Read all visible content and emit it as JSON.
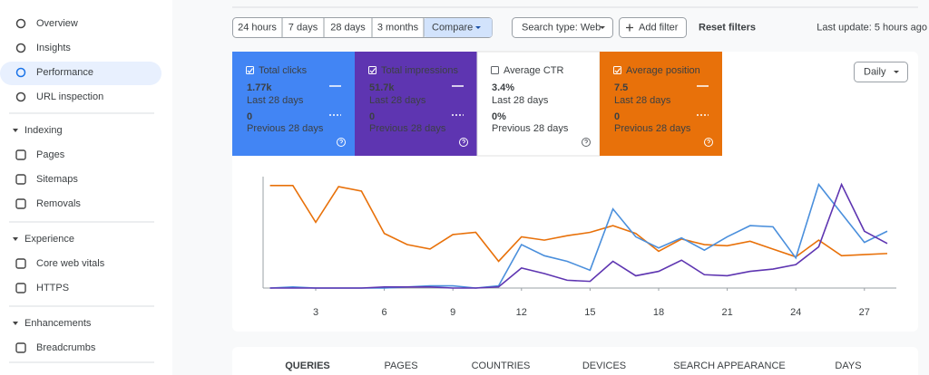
{
  "sidebar": {
    "items": [
      "Overview",
      "Insights",
      "Performance",
      "URL inspection"
    ],
    "sections": [
      {
        "title": "Indexing",
        "items": [
          "Pages",
          "Sitemaps",
          "Removals"
        ]
      },
      {
        "title": "Experience",
        "items": [
          "Core web vitals",
          "HTTPS"
        ]
      },
      {
        "title": "Enhancements",
        "items": [
          "Breadcrumbs"
        ]
      }
    ]
  },
  "toolbar": {
    "date_ranges": [
      "24 hours",
      "7 days",
      "28 days",
      "3 months"
    ],
    "compare": "Compare",
    "search_type": "Search type: Web",
    "add_filter": "Add filter",
    "reset": "Reset filters",
    "last_update": "Last update: 5 hours ago"
  },
  "metrics": [
    {
      "name": "Total clicks",
      "value": "1.77k",
      "period": "Last 28 days",
      "prev_value": "0",
      "prev_period": "Previous 28 days"
    },
    {
      "name": "Total impressions",
      "value": "51.7k",
      "period": "Last 28 days",
      "prev_value": "0",
      "prev_period": "Previous 28 days"
    },
    {
      "name": "Average CTR",
      "value": "3.4%",
      "period": "Last 28 days",
      "prev_value": "0%",
      "prev_period": "Previous 28 days"
    },
    {
      "name": "Average position",
      "value": "7.5",
      "period": "Last 28 days",
      "prev_value": "0",
      "prev_period": "Previous 28 days"
    }
  ],
  "granularity": "Daily",
  "chart_data": {
    "type": "line",
    "x": [
      1,
      2,
      3,
      4,
      5,
      6,
      7,
      8,
      9,
      10,
      11,
      12,
      13,
      14,
      15,
      16,
      17,
      18,
      19,
      20,
      21,
      22,
      23,
      24,
      25,
      26,
      27,
      28
    ],
    "xlim": [
      1,
      28
    ],
    "xticks": [
      3,
      6,
      9,
      12,
      15,
      18,
      21,
      24,
      27
    ],
    "ylim": [
      0,
      100
    ],
    "series": [
      {
        "name": "Average position",
        "color": "#e8710a",
        "values": [
          92,
          92,
          59,
          91,
          87,
          49,
          39,
          35,
          48,
          50,
          24,
          46,
          43,
          47,
          50,
          56,
          49,
          33,
          44,
          39,
          38,
          42,
          35,
          28,
          43,
          29,
          30,
          31
        ]
      },
      {
        "name": "Total clicks",
        "color": "#4a8fdc",
        "values": [
          0,
          1,
          0,
          0,
          0,
          0,
          1,
          2,
          2,
          0,
          2,
          39,
          29,
          24,
          16,
          71,
          46,
          36,
          45,
          34,
          46,
          56,
          55,
          27,
          93,
          67,
          41,
          51
        ]
      },
      {
        "name": "Total impressions",
        "color": "#5e35b1",
        "values": [
          0,
          0,
          0,
          0,
          0,
          1,
          1,
          1,
          0,
          0,
          1,
          18,
          13,
          7,
          6,
          24,
          11,
          15,
          25,
          12,
          11,
          15,
          17,
          21,
          37,
          93,
          51,
          40
        ]
      }
    ]
  },
  "tabs": [
    "QUERIES",
    "PAGES",
    "COUNTRIES",
    "DEVICES",
    "SEARCH APPEARANCE",
    "DAYS"
  ]
}
